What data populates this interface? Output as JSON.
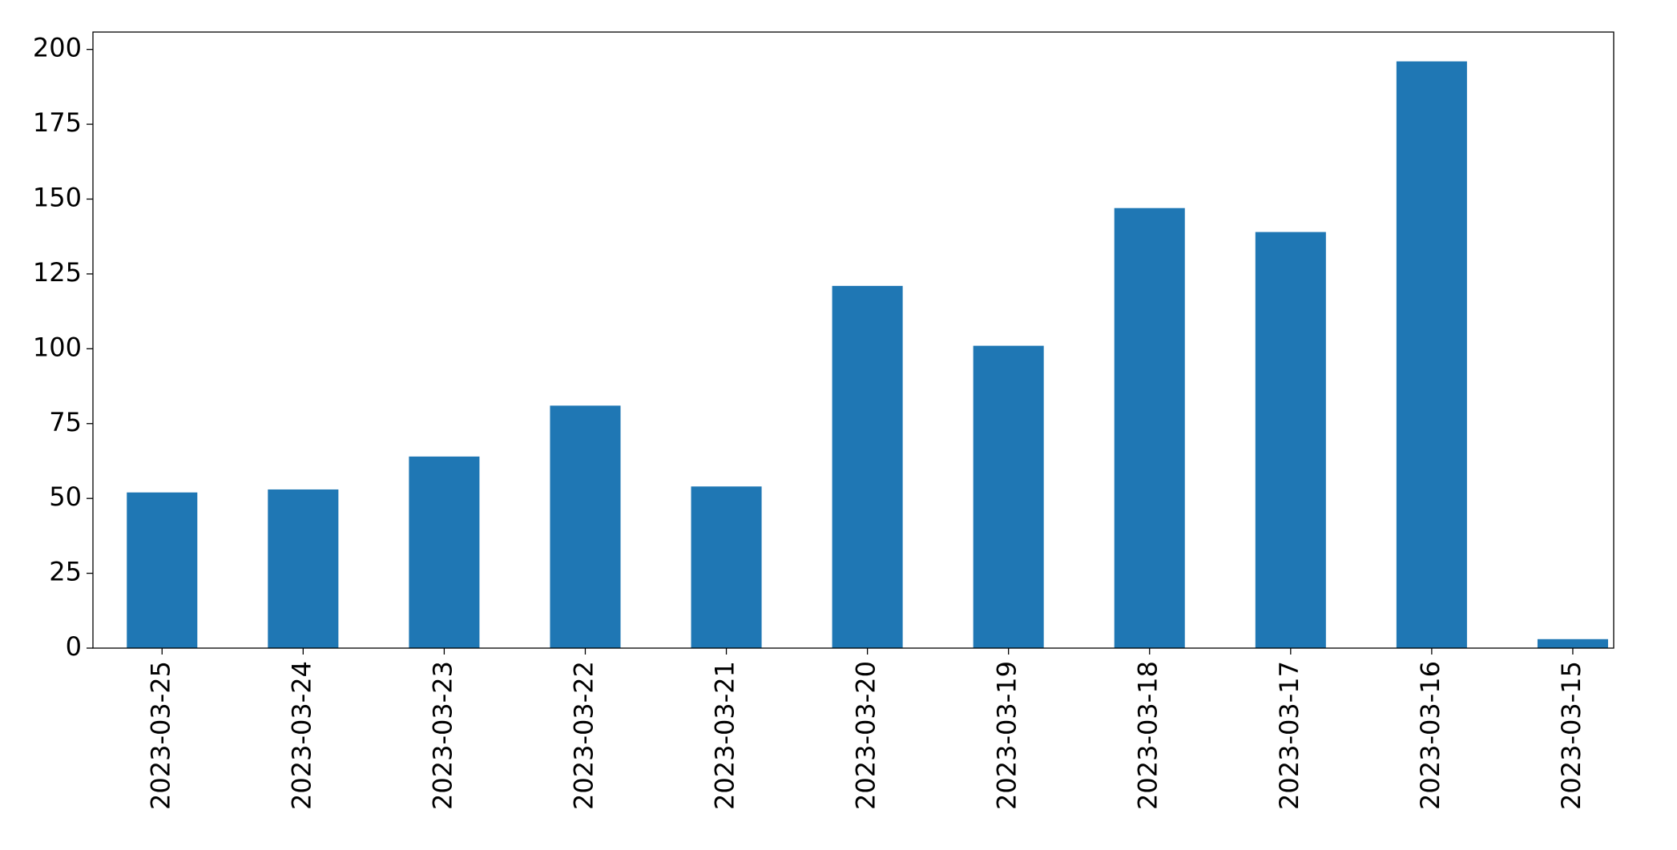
{
  "chart_data": {
    "type": "bar",
    "categories": [
      "2023-03-25",
      "2023-03-24",
      "2023-03-23",
      "2023-03-22",
      "2023-03-21",
      "2023-03-20",
      "2023-03-19",
      "2023-03-18",
      "2023-03-17",
      "2023-03-16",
      "2023-03-15"
    ],
    "values": [
      52,
      53,
      64,
      81,
      54,
      121,
      101,
      147,
      139,
      196,
      3
    ],
    "color": "#1f77b4",
    "ylim": [
      0,
      205.8
    ],
    "yticks": [
      0,
      25,
      50,
      75,
      100,
      125,
      150,
      175,
      200
    ],
    "grid": false
  }
}
